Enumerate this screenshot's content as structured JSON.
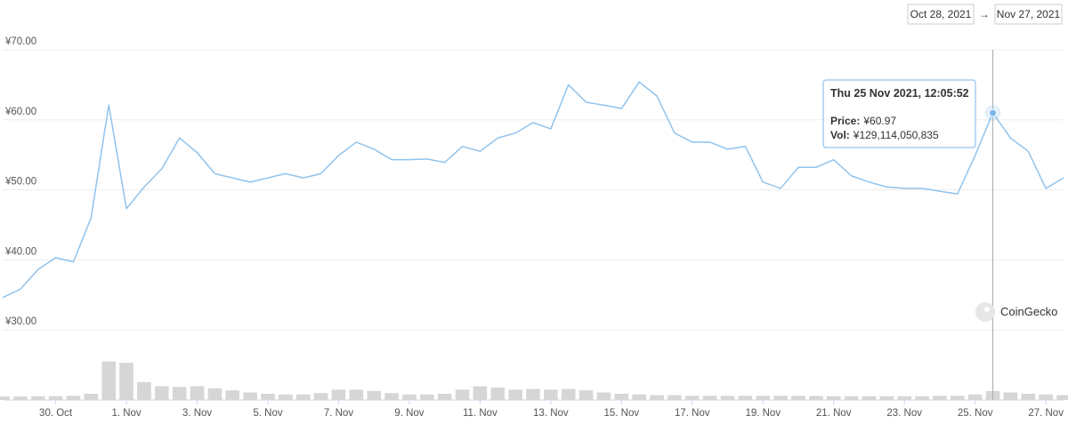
{
  "chart_data": {
    "type": "line",
    "date_range": {
      "from": "Oct 28, 2021",
      "to": "Nov 27, 2021"
    },
    "watermark": "CoinGecko",
    "x": [
      0.5,
      1,
      1.5,
      2,
      2.5,
      3,
      3.5,
      4,
      4.5,
      5,
      5.5,
      6,
      6.5,
      7,
      7.5,
      8,
      8.5,
      9,
      9.5,
      10,
      10.5,
      11,
      11.5,
      12,
      12.5,
      13,
      13.5,
      14,
      14.5,
      15,
      15.5,
      16,
      16.5,
      17,
      17.5,
      18,
      18.5,
      19,
      19.5,
      20,
      20.5,
      21,
      21.5,
      22,
      22.5,
      23,
      23.5,
      24,
      24.5,
      25,
      25.5,
      26,
      26.5,
      27,
      27.5,
      28,
      28.5,
      29,
      29.5,
      30,
      30.5
    ],
    "series": [
      {
        "type": "line",
        "color": "#91c3ec",
        "values": [
          34.6,
          35.8,
          38.6,
          40.3,
          39.7,
          46.0,
          62.1,
          47.3,
          50.4,
          53.0,
          57.4,
          55.3,
          52.3,
          51.7,
          51.1,
          51.7,
          52.3,
          51.7,
          52.3,
          54.9,
          56.8,
          55.8,
          54.3,
          54.3,
          54.4,
          53.9,
          56.2,
          55.5,
          57.4,
          58.1,
          59.6,
          58.7,
          65.0,
          62.5,
          62.1,
          61.6,
          65.4,
          63.4,
          58.1,
          56.8,
          56.8,
          55.8,
          56.2,
          51.1,
          50.2,
          53.2,
          53.2,
          54.3,
          52.0,
          51.1,
          50.4,
          50.2,
          50.2,
          49.8,
          49.4,
          54.9,
          60.97,
          57.4,
          55.5,
          50.2,
          51.7
        ]
      },
      {
        "type": "bar",
        "axis": "y2",
        "color": "#d6d6d6",
        "values": [
          50000000000.0,
          50000000000.0,
          55000000000.0,
          55000000000.0,
          60000000000.0,
          90000000000.0,
          560000000000.0,
          540000000000.0,
          260000000000.0,
          200000000000.0,
          190000000000.0,
          200000000000.0,
          170000000000.0,
          140000000000.0,
          110000000000.0,
          90000000000.0,
          80000000000.0,
          80000000000.0,
          100000000000.0,
          150000000000.0,
          150000000000.0,
          130000000000.0,
          100000000000.0,
          80000000000.0,
          80000000000.0,
          90000000000.0,
          150000000000.0,
          200000000000.0,
          180000000000.0,
          150000000000.0,
          160000000000.0,
          150000000000.0,
          160000000000.0,
          140000000000.0,
          110000000000.0,
          90000000000.0,
          80000000000.0,
          70000000000.0,
          70000000000.0,
          60000000000.0,
          60000000000.0,
          60000000000.0,
          60000000000.0,
          60000000000.0,
          60000000000.0,
          60000000000.0,
          60000000000.0,
          55000000000.0,
          55000000000.0,
          55000000000.0,
          55000000000.0,
          55000000000.0,
          55000000000.0,
          60000000000.0,
          60000000000.0,
          80000000000.0,
          129114050835,
          110000000000.0,
          90000000000.0,
          80000000000.0,
          70000000000.0
        ]
      }
    ],
    "xlim": [
      0.5,
      30.5
    ],
    "xticks": [
      {
        "value": 2,
        "label": "30. Oct"
      },
      {
        "value": 4,
        "label": "1. Nov"
      },
      {
        "value": 6,
        "label": "3. Nov"
      },
      {
        "value": 8,
        "label": "5. Nov"
      },
      {
        "value": 10,
        "label": "7. Nov"
      },
      {
        "value": 12,
        "label": "9. Nov"
      },
      {
        "value": 14,
        "label": "11. Nov"
      },
      {
        "value": 16,
        "label": "13. Nov"
      },
      {
        "value": 18,
        "label": "15. Nov"
      },
      {
        "value": 20,
        "label": "17. Nov"
      },
      {
        "value": 22,
        "label": "19. Nov"
      },
      {
        "value": 24,
        "label": "21. Nov"
      },
      {
        "value": 26,
        "label": "23. Nov"
      },
      {
        "value": 28,
        "label": "25. Nov"
      },
      {
        "value": 30,
        "label": "27. Nov"
      }
    ],
    "ylim": [
      30,
      70
    ],
    "yticks": [
      {
        "value": 30,
        "label": "¥30.00"
      },
      {
        "value": 40,
        "label": "¥40.00"
      },
      {
        "value": 50,
        "label": "¥50.00"
      },
      {
        "value": 60,
        "label": "¥60.00"
      },
      {
        "value": 70,
        "label": "¥70.00"
      }
    ],
    "y2lim": [
      0,
      800000000000
    ],
    "grid": true,
    "tooltip": {
      "index": 56,
      "title": "Thu 25 Nov 2021, 12:05:52",
      "price_key": "Price:",
      "price": "¥60.97",
      "vol_key": "Vol:",
      "vol": "¥129,114,050,835"
    }
  }
}
